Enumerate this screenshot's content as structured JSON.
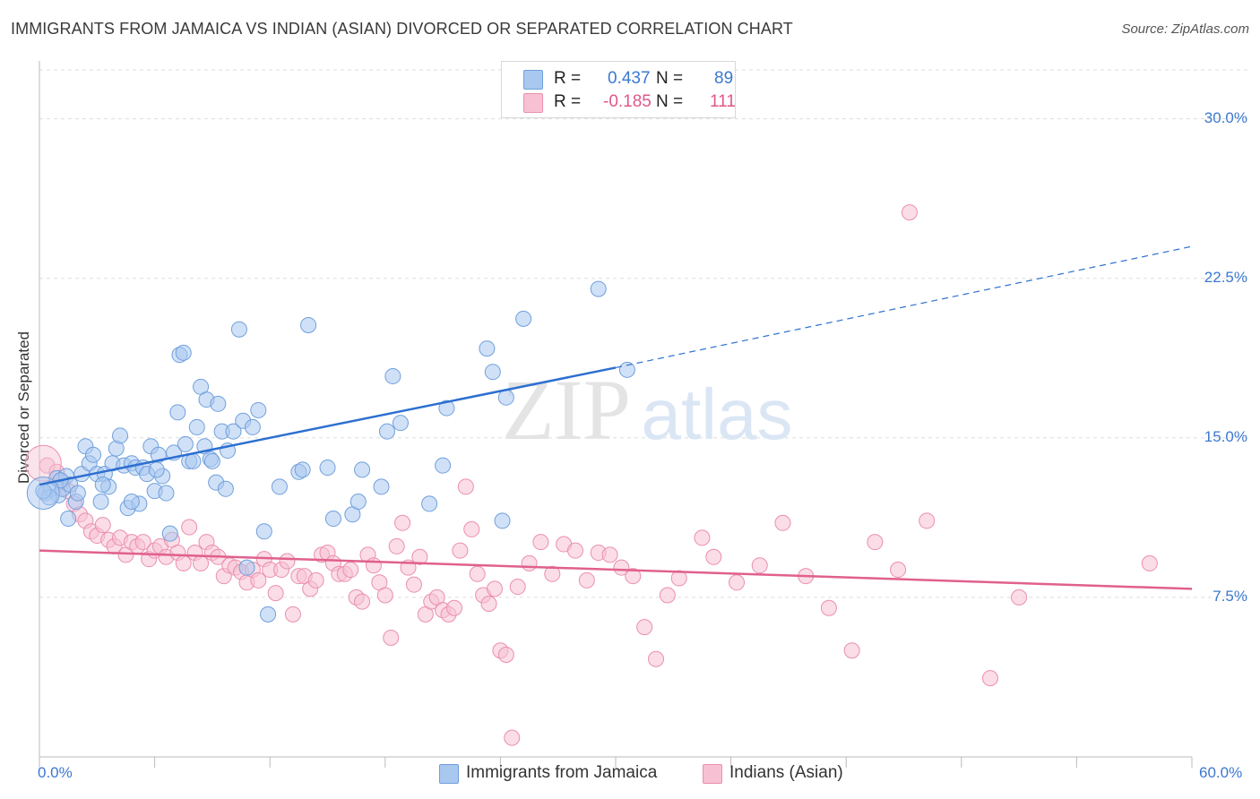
{
  "title": "IMMIGRANTS FROM JAMAICA VS INDIAN (ASIAN) DIVORCED OR SEPARATED CORRELATION CHART",
  "source": "Source: ZipAtlas.com",
  "watermark": {
    "zip": "ZIP",
    "atlas": "atlas"
  },
  "legend": {
    "r_label": "R =",
    "n_label": "N =",
    "rows": [
      {
        "r": "0.437",
        "n": "89"
      },
      {
        "r": "-0.185",
        "n": "111"
      }
    ]
  },
  "colors": {
    "blue_fill": "#a9c8f0",
    "blue_stroke": "#6f9fdc",
    "blue_line": "#2d6fd0",
    "pink_fill": "#f7c1d3",
    "pink_stroke": "#ea8fae",
    "pink_line": "#e0608e",
    "axis_label": "#3b78d0",
    "grid": "#dddddd"
  },
  "chart_data": {
    "type": "scatter",
    "title": "IMMIGRANTS FROM JAMAICA VS INDIAN (ASIAN) DIVORCED OR SEPARATED CORRELATION CHART",
    "xlabel": "",
    "ylabel": "Divorced or Separated",
    "xlim": [
      0,
      60
    ],
    "ylim": [
      0,
      32.3
    ],
    "x_tick_labels": [
      "0.0%",
      "60.0%"
    ],
    "y_ticks": [
      7.5,
      15.0,
      22.5,
      30.0
    ],
    "y_tick_labels": [
      "7.5%",
      "15.0%",
      "22.5%",
      "30.0%"
    ],
    "grid": true,
    "legend_position": "bottom-center",
    "series": [
      {
        "name": "Immigrants from Jamaica",
        "color": "#a9c8f0",
        "trend": {
          "x": [
            0,
            30
          ],
          "y": [
            12.8,
            18.3
          ],
          "dashed_to": [
            60,
            24.0
          ]
        },
        "points": [
          [
            0.3,
            12.4
          ],
          [
            0.6,
            12.6
          ],
          [
            0.9,
            13.1
          ],
          [
            1.0,
            12.3
          ],
          [
            1.2,
            12.6
          ],
          [
            1.4,
            13.2
          ],
          [
            1.5,
            11.2
          ],
          [
            1.6,
            12.8
          ],
          [
            1.9,
            12.0
          ],
          [
            2.2,
            13.3
          ],
          [
            2.4,
            14.6
          ],
          [
            2.6,
            13.8
          ],
          [
            2.8,
            14.2
          ],
          [
            3.0,
            13.3
          ],
          [
            3.2,
            12.0
          ],
          [
            3.4,
            13.3
          ],
          [
            3.6,
            12.7
          ],
          [
            3.8,
            13.8
          ],
          [
            4.0,
            14.5
          ],
          [
            4.2,
            15.1
          ],
          [
            4.4,
            13.7
          ],
          [
            4.6,
            11.7
          ],
          [
            4.8,
            13.8
          ],
          [
            5.0,
            13.6
          ],
          [
            5.2,
            11.9
          ],
          [
            5.4,
            13.6
          ],
          [
            5.6,
            13.3
          ],
          [
            5.8,
            14.6
          ],
          [
            6.0,
            12.5
          ],
          [
            6.2,
            14.2
          ],
          [
            6.4,
            13.2
          ],
          [
            6.6,
            12.4
          ],
          [
            6.8,
            10.5
          ],
          [
            7.0,
            14.3
          ],
          [
            7.2,
            16.2
          ],
          [
            7.3,
            18.9
          ],
          [
            7.5,
            19.0
          ],
          [
            7.6,
            14.7
          ],
          [
            7.8,
            13.9
          ],
          [
            8.0,
            13.9
          ],
          [
            8.2,
            15.5
          ],
          [
            8.4,
            17.4
          ],
          [
            8.6,
            14.6
          ],
          [
            8.7,
            16.8
          ],
          [
            8.9,
            14.0
          ],
          [
            9.0,
            13.9
          ],
          [
            9.2,
            12.9
          ],
          [
            9.3,
            16.6
          ],
          [
            9.5,
            15.3
          ],
          [
            9.7,
            12.6
          ],
          [
            9.8,
            14.4
          ],
          [
            10.1,
            15.3
          ],
          [
            10.4,
            20.1
          ],
          [
            10.6,
            15.8
          ],
          [
            10.8,
            8.9
          ],
          [
            11.1,
            15.5
          ],
          [
            11.4,
            16.3
          ],
          [
            11.7,
            10.6
          ],
          [
            11.9,
            6.7
          ],
          [
            12.5,
            12.7
          ],
          [
            13.5,
            13.4
          ],
          [
            13.7,
            13.5
          ],
          [
            14.0,
            20.3
          ],
          [
            15.0,
            13.6
          ],
          [
            15.3,
            11.2
          ],
          [
            16.3,
            11.4
          ],
          [
            16.6,
            12.0
          ],
          [
            16.8,
            13.5
          ],
          [
            17.8,
            12.7
          ],
          [
            18.1,
            15.3
          ],
          [
            18.4,
            17.9
          ],
          [
            18.8,
            15.7
          ],
          [
            20.3,
            11.9
          ],
          [
            21.0,
            13.7
          ],
          [
            21.2,
            16.4
          ],
          [
            23.3,
            19.2
          ],
          [
            23.6,
            18.1
          ],
          [
            24.1,
            11.1
          ],
          [
            24.3,
            16.9
          ],
          [
            25.2,
            20.6
          ],
          [
            29.1,
            22.0
          ],
          [
            30.6,
            18.2
          ],
          [
            0.5,
            12.2
          ],
          [
            0.2,
            12.5
          ],
          [
            1.1,
            13.0
          ],
          [
            2.0,
            12.4
          ],
          [
            3.3,
            12.8
          ],
          [
            4.8,
            12.0
          ],
          [
            6.1,
            13.5
          ]
        ]
      },
      {
        "name": "Indians (Asian)",
        "color": "#f7c1d3",
        "trend": {
          "x": [
            0,
            60
          ],
          "y": [
            9.7,
            7.9
          ]
        },
        "points": [
          [
            0.4,
            13.7
          ],
          [
            0.9,
            13.4
          ],
          [
            1.2,
            12.9
          ],
          [
            1.5,
            12.5
          ],
          [
            1.8,
            11.9
          ],
          [
            2.1,
            11.4
          ],
          [
            2.4,
            11.1
          ],
          [
            2.7,
            10.6
          ],
          [
            3.0,
            10.4
          ],
          [
            3.3,
            10.9
          ],
          [
            3.6,
            10.2
          ],
          [
            3.9,
            9.9
          ],
          [
            4.2,
            10.3
          ],
          [
            4.5,
            9.5
          ],
          [
            4.8,
            10.1
          ],
          [
            5.1,
            9.9
          ],
          [
            5.4,
            10.1
          ],
          [
            5.7,
            9.3
          ],
          [
            6.0,
            9.7
          ],
          [
            6.3,
            9.9
          ],
          [
            6.6,
            9.4
          ],
          [
            6.9,
            10.2
          ],
          [
            7.2,
            9.6
          ],
          [
            7.5,
            9.1
          ],
          [
            7.8,
            10.8
          ],
          [
            8.1,
            9.6
          ],
          [
            8.4,
            9.1
          ],
          [
            8.7,
            10.1
          ],
          [
            9.0,
            9.6
          ],
          [
            9.3,
            9.4
          ],
          [
            9.6,
            8.5
          ],
          [
            9.9,
            9.0
          ],
          [
            10.2,
            8.9
          ],
          [
            10.5,
            8.7
          ],
          [
            10.8,
            8.2
          ],
          [
            11.1,
            8.8
          ],
          [
            11.4,
            8.3
          ],
          [
            11.7,
            9.3
          ],
          [
            12.0,
            8.8
          ],
          [
            12.3,
            7.7
          ],
          [
            12.6,
            8.8
          ],
          [
            12.9,
            9.2
          ],
          [
            13.2,
            6.7
          ],
          [
            13.5,
            8.5
          ],
          [
            13.8,
            8.5
          ],
          [
            14.1,
            7.9
          ],
          [
            14.4,
            8.3
          ],
          [
            14.7,
            9.5
          ],
          [
            15.0,
            9.6
          ],
          [
            15.3,
            9.1
          ],
          [
            15.6,
            8.6
          ],
          [
            15.9,
            8.6
          ],
          [
            16.2,
            8.8
          ],
          [
            16.5,
            7.5
          ],
          [
            16.8,
            7.3
          ],
          [
            17.1,
            9.5
          ],
          [
            17.4,
            9.0
          ],
          [
            17.7,
            8.2
          ],
          [
            18.0,
            7.6
          ],
          [
            18.3,
            5.6
          ],
          [
            18.6,
            9.9
          ],
          [
            18.9,
            11.0
          ],
          [
            19.2,
            8.9
          ],
          [
            19.5,
            8.1
          ],
          [
            19.8,
            9.4
          ],
          [
            20.1,
            6.7
          ],
          [
            20.4,
            7.3
          ],
          [
            20.7,
            7.5
          ],
          [
            21.0,
            6.9
          ],
          [
            21.3,
            6.7
          ],
          [
            21.6,
            7.0
          ],
          [
            21.9,
            9.7
          ],
          [
            22.2,
            12.7
          ],
          [
            22.5,
            10.7
          ],
          [
            22.8,
            8.6
          ],
          [
            23.1,
            7.6
          ],
          [
            23.4,
            7.2
          ],
          [
            23.7,
            7.9
          ],
          [
            24.0,
            5.0
          ],
          [
            24.3,
            4.8
          ],
          [
            24.9,
            8.0
          ],
          [
            25.5,
            9.1
          ],
          [
            26.1,
            10.1
          ],
          [
            26.7,
            8.6
          ],
          [
            27.3,
            10.0
          ],
          [
            27.9,
            9.7
          ],
          [
            28.5,
            8.3
          ],
          [
            29.1,
            9.6
          ],
          [
            29.7,
            9.5
          ],
          [
            30.3,
            8.9
          ],
          [
            30.9,
            8.5
          ],
          [
            31.5,
            6.1
          ],
          [
            32.1,
            4.6
          ],
          [
            32.7,
            7.6
          ],
          [
            33.3,
            8.4
          ],
          [
            34.5,
            10.3
          ],
          [
            35.1,
            9.4
          ],
          [
            36.3,
            8.2
          ],
          [
            37.5,
            9.0
          ],
          [
            38.7,
            11.0
          ],
          [
            39.9,
            8.5
          ],
          [
            41.1,
            7.0
          ],
          [
            42.3,
            5.0
          ],
          [
            43.5,
            10.1
          ],
          [
            44.7,
            8.8
          ],
          [
            45.3,
            25.6
          ],
          [
            46.2,
            11.1
          ],
          [
            49.5,
            3.7
          ],
          [
            51.0,
            7.5
          ],
          [
            57.8,
            9.1
          ],
          [
            24.6,
            0.9
          ]
        ]
      }
    ]
  },
  "x_axis": {
    "min_label": "0.0%",
    "max_label": "60.0%"
  },
  "y_axis": {
    "label": "Divorced or Separated"
  }
}
